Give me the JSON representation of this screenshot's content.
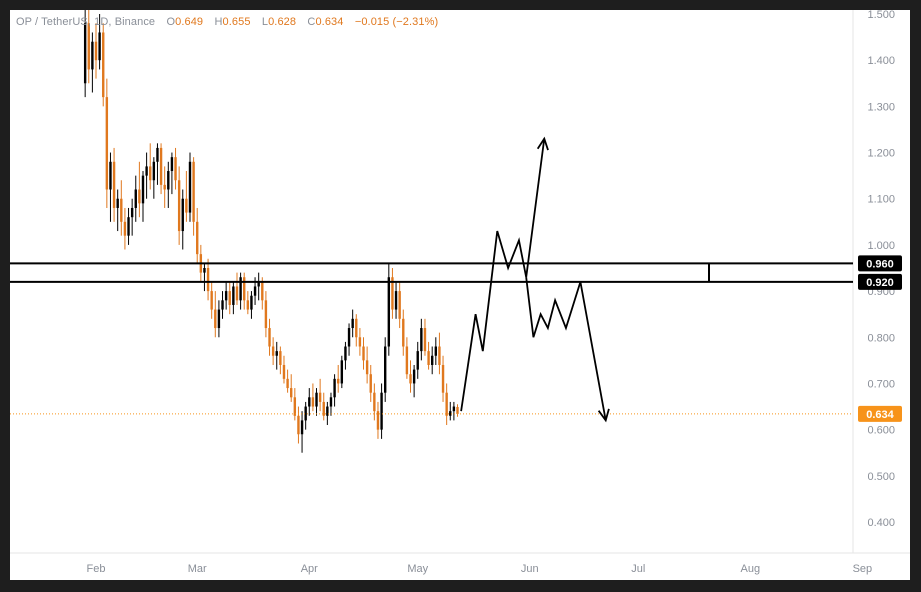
{
  "header": {
    "symbol": "OP / TetherUS, 1D, Binance",
    "o_label": "O",
    "o_value": "0.649",
    "h_label": "H",
    "h_value": "0.655",
    "l_label": "L",
    "l_value": "0.628",
    "c_label": "C",
    "c_value": "0.634",
    "change": "−0.015 (−2.31%)"
  },
  "colors": {
    "background": "#1e1e1e",
    "panel": "#ffffff",
    "up_candle": "#000000",
    "down_candle": "#e0781e",
    "last_price": "#f7931a",
    "level_lines": "#000000",
    "axis_text": "#8a8f98"
  },
  "chart_data": {
    "type": "candlestick",
    "symbol": "OP/USDT",
    "timeframe": "1D",
    "exchange": "Binance",
    "ylim": [
      0.32,
      1.52
    ],
    "y_ticks": [
      "1.500",
      "1.400",
      "1.300",
      "1.200",
      "1.100",
      "1.000",
      "0.900",
      "0.800",
      "0.700",
      "0.600",
      "0.500",
      "0.400"
    ],
    "x_ticks": [
      "Feb",
      "Mar",
      "Apr",
      "May",
      "Jun",
      "Jul",
      "Aug",
      "Sep"
    ],
    "x_tick_day_index": [
      0,
      28,
      59,
      89,
      120,
      150,
      181,
      212
    ],
    "candles": [
      [
        -3,
        1.35,
        1.52,
        1.32,
        1.48
      ],
      [
        -2,
        1.48,
        1.52,
        1.35,
        1.38
      ],
      [
        -1,
        1.38,
        1.46,
        1.33,
        1.44
      ],
      [
        0,
        1.44,
        1.48,
        1.36,
        1.4
      ],
      [
        1,
        1.4,
        1.5,
        1.38,
        1.46
      ],
      [
        2,
        1.46,
        1.48,
        1.3,
        1.32
      ],
      [
        3,
        1.32,
        1.36,
        1.08,
        1.12
      ],
      [
        4,
        1.12,
        1.2,
        1.05,
        1.18
      ],
      [
        5,
        1.18,
        1.21,
        1.05,
        1.08
      ],
      [
        6,
        1.08,
        1.12,
        1.03,
        1.1
      ],
      [
        7,
        1.1,
        1.14,
        1.02,
        1.05
      ],
      [
        8,
        1.05,
        1.08,
        0.99,
        1.02
      ],
      [
        9,
        1.02,
        1.08,
        1.0,
        1.06
      ],
      [
        10,
        1.06,
        1.1,
        1.02,
        1.08
      ],
      [
        11,
        1.08,
        1.15,
        1.05,
        1.12
      ],
      [
        12,
        1.12,
        1.18,
        1.06,
        1.09
      ],
      [
        13,
        1.09,
        1.16,
        1.05,
        1.15
      ],
      [
        14,
        1.15,
        1.2,
        1.1,
        1.17
      ],
      [
        15,
        1.17,
        1.22,
        1.12,
        1.14
      ],
      [
        16,
        1.14,
        1.19,
        1.1,
        1.18
      ],
      [
        17,
        1.18,
        1.22,
        1.13,
        1.21
      ],
      [
        18,
        1.21,
        1.22,
        1.11,
        1.13
      ],
      [
        19,
        1.13,
        1.17,
        1.08,
        1.12
      ],
      [
        20,
        1.12,
        1.18,
        1.08,
        1.16
      ],
      [
        21,
        1.16,
        1.2,
        1.11,
        1.19
      ],
      [
        22,
        1.19,
        1.21,
        1.12,
        1.14
      ],
      [
        23,
        1.14,
        1.17,
        1.0,
        1.03
      ],
      [
        24,
        1.03,
        1.12,
        0.99,
        1.1
      ],
      [
        25,
        1.1,
        1.16,
        1.05,
        1.07
      ],
      [
        26,
        1.07,
        1.2,
        1.05,
        1.18
      ],
      [
        27,
        1.18,
        1.19,
        1.02,
        1.05
      ],
      [
        28,
        1.05,
        1.08,
        0.96,
        0.98
      ],
      [
        29,
        0.98,
        1.0,
        0.92,
        0.94
      ],
      [
        30,
        0.94,
        0.96,
        0.9,
        0.95
      ],
      [
        31,
        0.95,
        0.97,
        0.88,
        0.9
      ],
      [
        32,
        0.9,
        0.92,
        0.84,
        0.86
      ],
      [
        33,
        0.86,
        0.9,
        0.8,
        0.82
      ],
      [
        34,
        0.82,
        0.88,
        0.8,
        0.86
      ],
      [
        35,
        0.86,
        0.9,
        0.84,
        0.88
      ],
      [
        36,
        0.88,
        0.92,
        0.86,
        0.9
      ],
      [
        37,
        0.9,
        0.92,
        0.85,
        0.87
      ],
      [
        38,
        0.87,
        0.92,
        0.85,
        0.91
      ],
      [
        39,
        0.91,
        0.94,
        0.87,
        0.88
      ],
      [
        40,
        0.88,
        0.94,
        0.86,
        0.93
      ],
      [
        41,
        0.93,
        0.94,
        0.86,
        0.88
      ],
      [
        42,
        0.88,
        0.9,
        0.85,
        0.86
      ],
      [
        43,
        0.86,
        0.9,
        0.84,
        0.89
      ],
      [
        44,
        0.89,
        0.93,
        0.87,
        0.91
      ],
      [
        45,
        0.91,
        0.94,
        0.88,
        0.92
      ],
      [
        46,
        0.92,
        0.93,
        0.86,
        0.88
      ],
      [
        47,
        0.88,
        0.9,
        0.8,
        0.82
      ],
      [
        48,
        0.82,
        0.84,
        0.76,
        0.78
      ],
      [
        49,
        0.78,
        0.8,
        0.74,
        0.76
      ],
      [
        50,
        0.76,
        0.79,
        0.73,
        0.77
      ],
      [
        51,
        0.77,
        0.78,
        0.72,
        0.74
      ],
      [
        52,
        0.74,
        0.76,
        0.7,
        0.71
      ],
      [
        53,
        0.71,
        0.73,
        0.68,
        0.69
      ],
      [
        54,
        0.69,
        0.72,
        0.66,
        0.67
      ],
      [
        55,
        0.67,
        0.69,
        0.62,
        0.63
      ],
      [
        56,
        0.63,
        0.65,
        0.57,
        0.59
      ],
      [
        57,
        0.59,
        0.64,
        0.55,
        0.62
      ],
      [
        58,
        0.62,
        0.66,
        0.6,
        0.65
      ],
      [
        59,
        0.65,
        0.69,
        0.63,
        0.67
      ],
      [
        60,
        0.67,
        0.7,
        0.64,
        0.65
      ],
      [
        61,
        0.65,
        0.69,
        0.63,
        0.68
      ],
      [
        62,
        0.68,
        0.71,
        0.64,
        0.66
      ],
      [
        63,
        0.66,
        0.68,
        0.62,
        0.63
      ],
      [
        64,
        0.63,
        0.66,
        0.61,
        0.65
      ],
      [
        65,
        0.65,
        0.68,
        0.63,
        0.67
      ],
      [
        66,
        0.67,
        0.72,
        0.65,
        0.71
      ],
      [
        67,
        0.71,
        0.74,
        0.68,
        0.7
      ],
      [
        68,
        0.7,
        0.76,
        0.69,
        0.75
      ],
      [
        69,
        0.75,
        0.79,
        0.73,
        0.78
      ],
      [
        70,
        0.78,
        0.83,
        0.76,
        0.82
      ],
      [
        71,
        0.82,
        0.86,
        0.8,
        0.84
      ],
      [
        72,
        0.84,
        0.85,
        0.78,
        0.8
      ],
      [
        73,
        0.8,
        0.82,
        0.76,
        0.78
      ],
      [
        74,
        0.78,
        0.8,
        0.73,
        0.75
      ],
      [
        75,
        0.75,
        0.78,
        0.7,
        0.72
      ],
      [
        76,
        0.72,
        0.74,
        0.66,
        0.68
      ],
      [
        77,
        0.68,
        0.7,
        0.62,
        0.64
      ],
      [
        78,
        0.64,
        0.66,
        0.58,
        0.6
      ],
      [
        79,
        0.6,
        0.7,
        0.58,
        0.68
      ],
      [
        80,
        0.68,
        0.8,
        0.66,
        0.78
      ],
      [
        81,
        0.78,
        0.96,
        0.76,
        0.93
      ],
      [
        82,
        0.93,
        0.95,
        0.84,
        0.86
      ],
      [
        83,
        0.86,
        0.92,
        0.84,
        0.9
      ],
      [
        84,
        0.9,
        0.92,
        0.82,
        0.84
      ],
      [
        85,
        0.84,
        0.86,
        0.76,
        0.78
      ],
      [
        86,
        0.78,
        0.8,
        0.71,
        0.72
      ],
      [
        87,
        0.72,
        0.75,
        0.68,
        0.7
      ],
      [
        88,
        0.7,
        0.74,
        0.67,
        0.73
      ],
      [
        89,
        0.73,
        0.79,
        0.71,
        0.77
      ],
      [
        90,
        0.77,
        0.84,
        0.75,
        0.82
      ],
      [
        91,
        0.82,
        0.84,
        0.76,
        0.77
      ],
      [
        92,
        0.77,
        0.79,
        0.73,
        0.74
      ],
      [
        93,
        0.74,
        0.78,
        0.72,
        0.76
      ],
      [
        94,
        0.76,
        0.8,
        0.74,
        0.78
      ],
      [
        95,
        0.78,
        0.81,
        0.72,
        0.74
      ],
      [
        96,
        0.74,
        0.76,
        0.66,
        0.68
      ],
      [
        97,
        0.68,
        0.7,
        0.61,
        0.63
      ],
      [
        98,
        0.63,
        0.66,
        0.62,
        0.64
      ],
      [
        99,
        0.64,
        0.66,
        0.62,
        0.65
      ],
      [
        100,
        0.649,
        0.655,
        0.628,
        0.634
      ]
    ],
    "horizontal_levels": [
      {
        "price": 0.96,
        "label": "0.960"
      },
      {
        "price": 0.92,
        "label": "0.920"
      }
    ],
    "last_price": {
      "price": 0.634,
      "label": "0.634"
    },
    "projections": [
      {
        "points": [
          [
            101,
            0.64
          ],
          [
            105,
            0.85
          ],
          [
            107,
            0.77
          ],
          [
            111,
            1.03
          ],
          [
            114,
            0.95
          ],
          [
            117,
            1.01
          ],
          [
            119,
            0.93
          ],
          [
            124,
            1.23
          ]
        ],
        "arrow_end": true
      },
      {
        "points": [
          [
            119,
            0.93
          ],
          [
            121,
            0.8
          ],
          [
            123,
            0.85
          ],
          [
            125,
            0.82
          ],
          [
            127,
            0.88
          ],
          [
            130,
            0.82
          ],
          [
            134,
            0.92
          ],
          [
            141,
            0.62
          ]
        ],
        "arrow_end": true
      }
    ]
  }
}
